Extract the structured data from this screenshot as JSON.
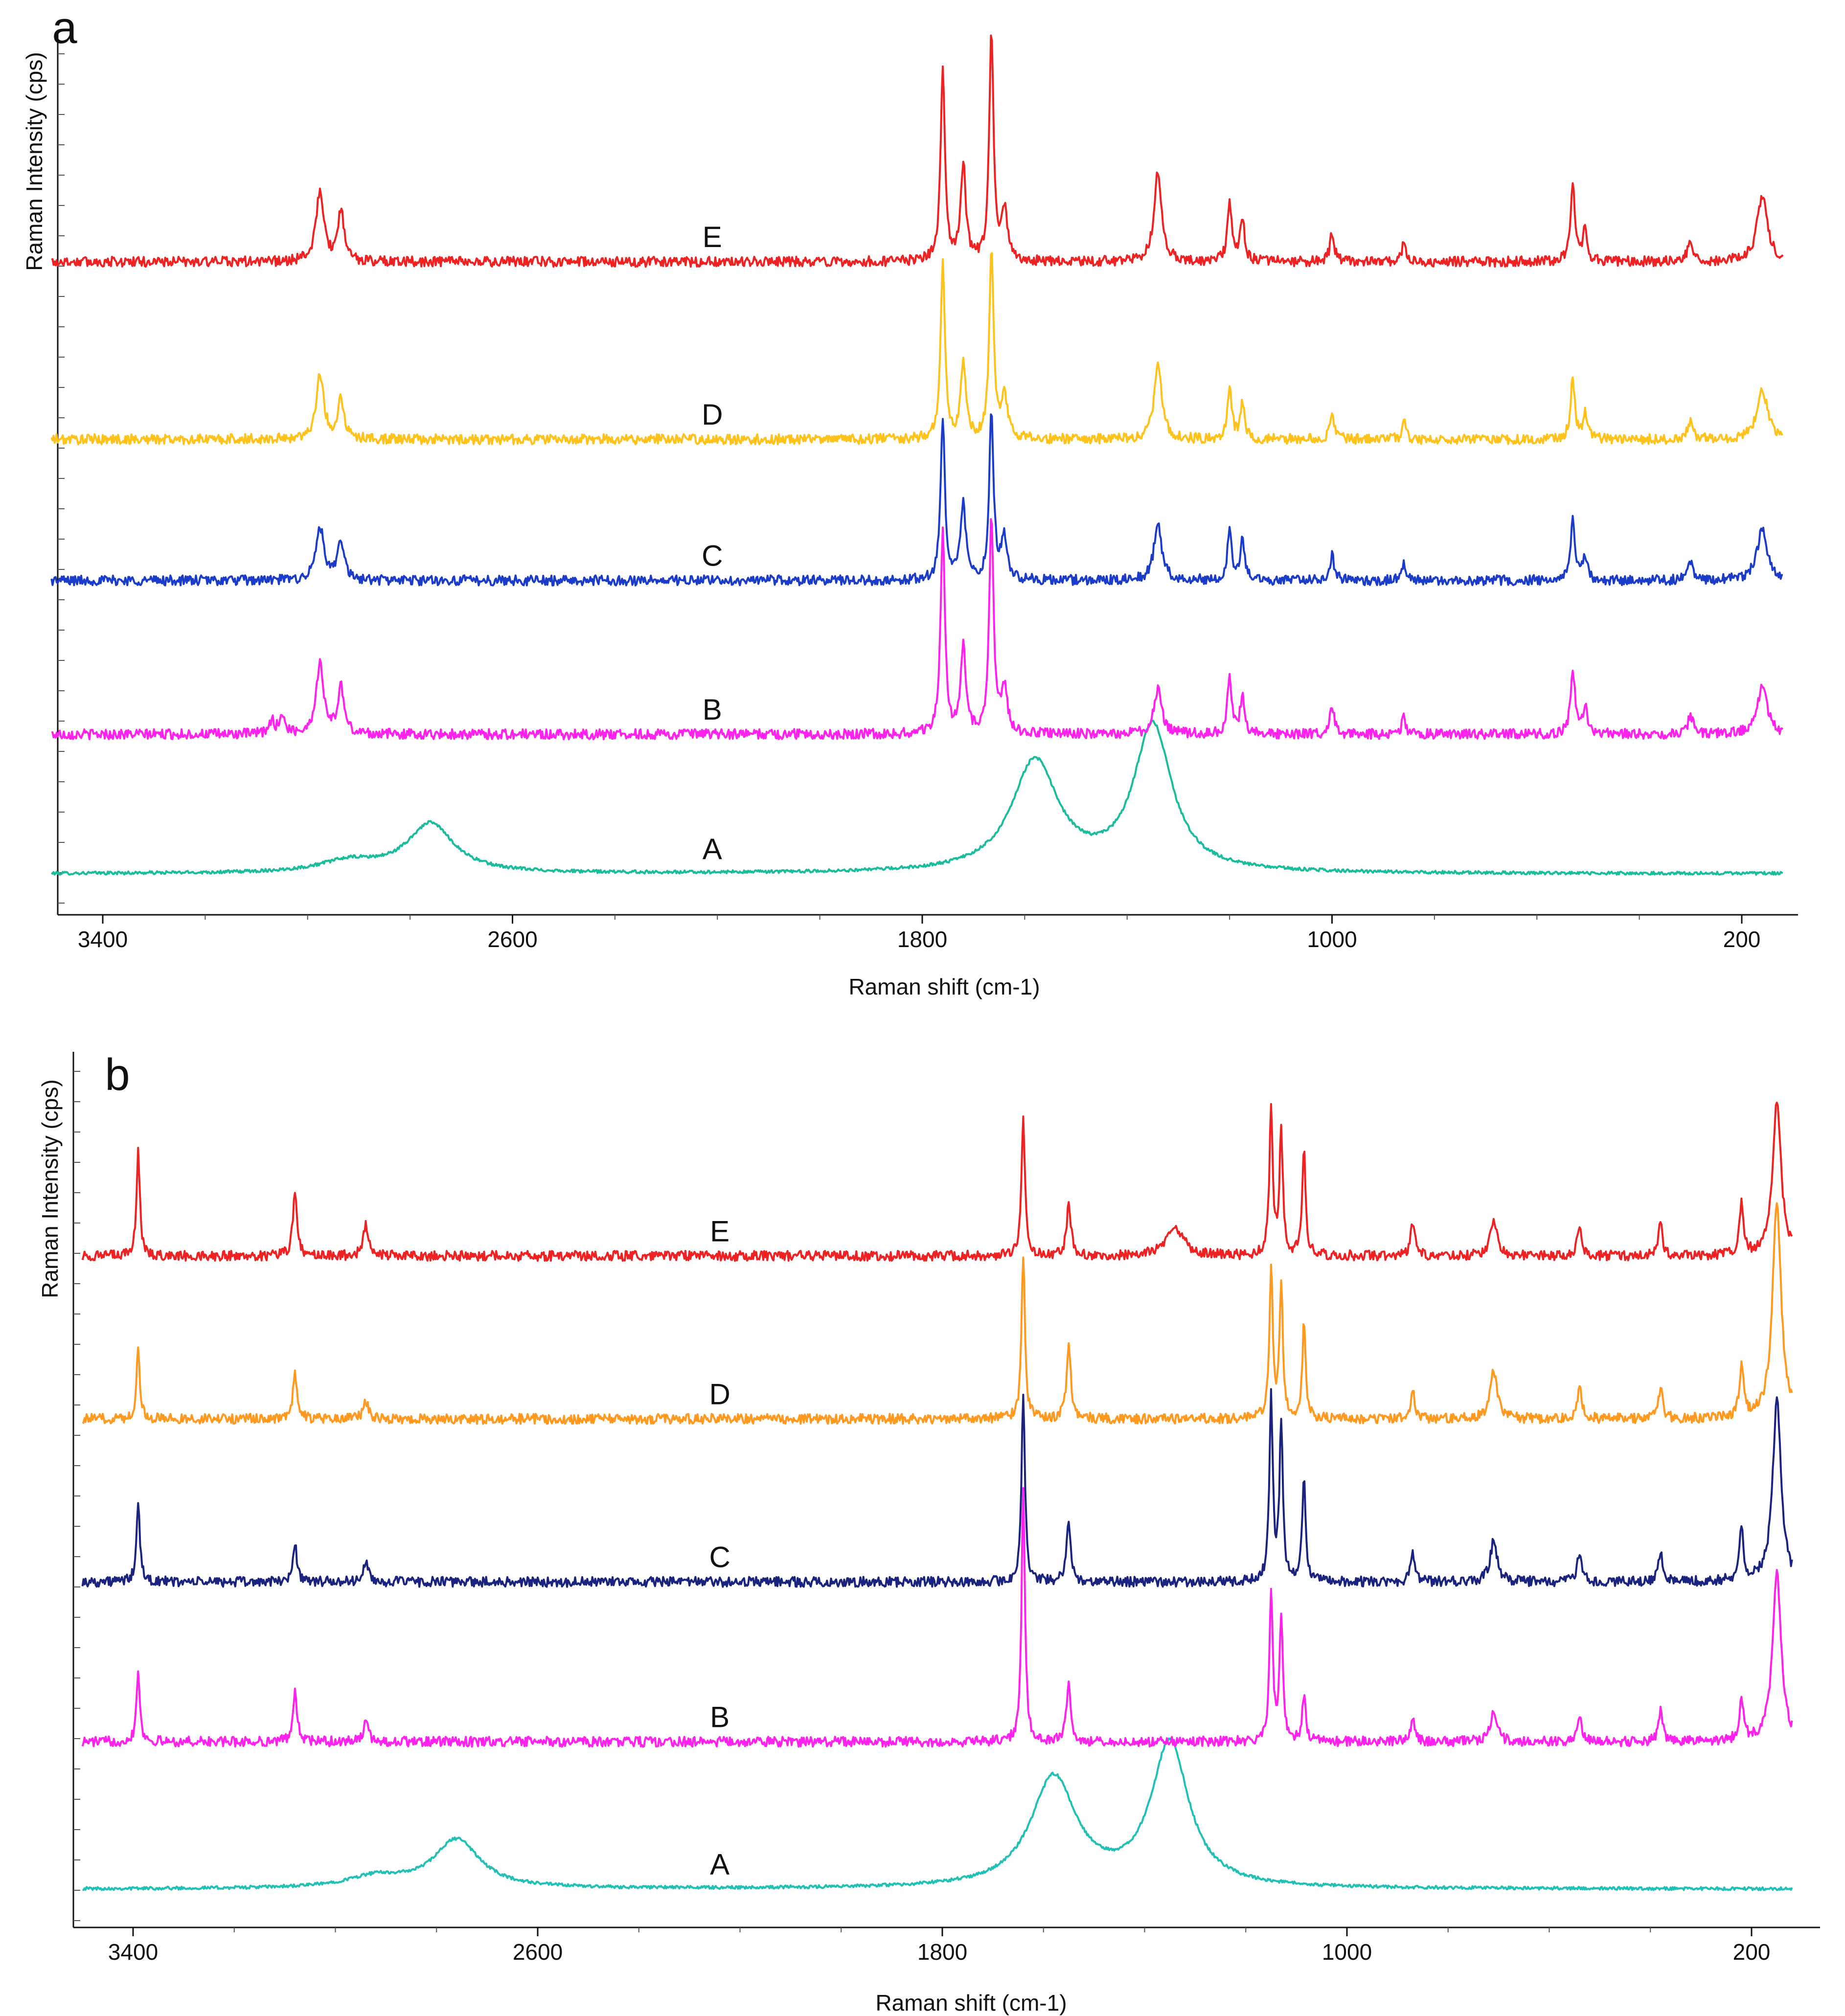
{
  "chart_data": [
    {
      "type": "line",
      "panel_label": "a",
      "xlabel": "Raman shift (cm-1)",
      "ylabel": "Raman Intensity (cps)",
      "xlim": [
        3500,
        120
      ],
      "x_ticks": [
        3400,
        2600,
        1800,
        1000,
        200
      ],
      "x_tick_labels": [
        "3400",
        "2600",
        "1800",
        "1000",
        "200"
      ],
      "ylim": [
        0,
        27
      ],
      "y_ticks_shown": false,
      "series": [
        {
          "name": "A",
          "label": "A",
          "color": "#1ABC9C",
          "baseline": 0.6,
          "peaks": [
            [
              2920,
              0.35,
              70
            ],
            [
              2760,
              1.55,
              55
            ],
            [
              1580,
              3.5,
              55
            ],
            [
              1350,
              4.6,
              45
            ]
          ],
          "label_x": 2210,
          "label_y": 0.6
        },
        {
          "name": "B",
          "label": "B",
          "color": "#FF22EE",
          "baseline": 5.0,
          "peaks": [
            [
              3070,
              0.4,
              6
            ],
            [
              3050,
              0.6,
              6
            ],
            [
              2976,
              2.2,
              9
            ],
            [
              2935,
              1.5,
              7
            ],
            [
              1760,
              6.5,
              5
            ],
            [
              1720,
              2.7,
              6
            ],
            [
              1665,
              6.8,
              5
            ],
            [
              1640,
              1.4,
              7
            ],
            [
              1340,
              1.4,
              9
            ],
            [
              1200,
              1.8,
              5
            ],
            [
              1175,
              1.2,
              5
            ],
            [
              1000,
              0.9,
              5
            ],
            [
              860,
              0.6,
              4
            ],
            [
              530,
              2.1,
              5
            ],
            [
              506,
              0.9,
              5
            ],
            [
              300,
              0.6,
              6
            ],
            [
              160,
              1.5,
              12
            ]
          ],
          "label_x": 2210,
          "label_y": 5.0
        },
        {
          "name": "C",
          "label": "C",
          "color": "#1A3CC8",
          "baseline": 9.85,
          "peaks": [
            [
              2976,
              1.7,
              9
            ],
            [
              2935,
              1.3,
              7
            ],
            [
              1760,
              5.0,
              5
            ],
            [
              1720,
              2.4,
              6
            ],
            [
              1665,
              5.3,
              5
            ],
            [
              1640,
              1.3,
              7
            ],
            [
              1340,
              1.8,
              9
            ],
            [
              1200,
              1.6,
              5
            ],
            [
              1175,
              1.2,
              5
            ],
            [
              1000,
              0.8,
              5
            ],
            [
              860,
              0.6,
              4
            ],
            [
              530,
              1.9,
              5
            ],
            [
              506,
              0.8,
              5
            ],
            [
              300,
              0.6,
              6
            ],
            [
              160,
              1.6,
              12
            ]
          ],
          "label_x": 2210,
          "label_y": 9.85
        },
        {
          "name": "D",
          "label": "D",
          "color": "#FFC21A",
          "baseline": 14.3,
          "peaks": [
            [
              2976,
              2.0,
              9
            ],
            [
              2935,
              1.3,
              7
            ],
            [
              1760,
              5.5,
              5
            ],
            [
              1720,
              2.4,
              6
            ],
            [
              1665,
              6.0,
              5
            ],
            [
              1640,
              1.4,
              7
            ],
            [
              1340,
              2.3,
              9
            ],
            [
              1200,
              1.6,
              5
            ],
            [
              1175,
              1.2,
              5
            ],
            [
              1000,
              0.8,
              5
            ],
            [
              860,
              0.6,
              4
            ],
            [
              530,
              1.9,
              5
            ],
            [
              506,
              0.8,
              5
            ],
            [
              300,
              0.6,
              6
            ],
            [
              160,
              1.6,
              12
            ]
          ],
          "label_x": 2210,
          "label_y": 14.3
        },
        {
          "name": "E",
          "label": "E",
          "color": "#EE2222",
          "baseline": 19.9,
          "peaks": [
            [
              2976,
              2.2,
              9
            ],
            [
              2935,
              1.6,
              7
            ],
            [
              1760,
              6.2,
              5
            ],
            [
              1720,
              3.0,
              6
            ],
            [
              1665,
              7.1,
              5
            ],
            [
              1640,
              1.6,
              7
            ],
            [
              1340,
              2.8,
              9
            ],
            [
              1200,
              1.9,
              5
            ],
            [
              1175,
              1.4,
              5
            ],
            [
              1000,
              0.9,
              5
            ],
            [
              860,
              0.6,
              4
            ],
            [
              530,
              2.5,
              5
            ],
            [
              506,
              1.0,
              5
            ],
            [
              300,
              0.7,
              6
            ],
            [
              160,
              2.1,
              12
            ]
          ],
          "label_x": 2210,
          "label_y": 19.9
        }
      ]
    },
    {
      "type": "line",
      "panel_label": "b",
      "xlabel": "Raman shift (cm-1)",
      "ylabel": "Raman Intensity (cps)",
      "xlim": [
        3500,
        120
      ],
      "x_ticks": [
        3400,
        2600,
        1800,
        1000,
        200
      ],
      "x_tick_labels": [
        "3400",
        "2600",
        "1800",
        "1000",
        "200"
      ],
      "ylim": [
        0,
        27
      ],
      "y_ticks_shown": false,
      "series": [
        {
          "name": "A",
          "label": "A",
          "color": "#20C0B4",
          "baseline": 0.6,
          "peaks": [
            [
              2920,
              0.35,
              70
            ],
            [
              2760,
              1.55,
              55
            ],
            [
              1580,
              3.5,
              55
            ],
            [
              1350,
              4.6,
              45
            ]
          ],
          "label_x": 2240,
          "label_y": 0.6
        },
        {
          "name": "B",
          "label": "B",
          "color": "#FF22EE",
          "baseline": 5.3,
          "peaks": [
            [
              3390,
              2.3,
              4
            ],
            [
              3080,
              1.6,
              5
            ],
            [
              2940,
              0.6,
              6
            ],
            [
              1640,
              8.0,
              4
            ],
            [
              1550,
              1.9,
              5
            ],
            [
              1150,
              4.7,
              4
            ],
            [
              1130,
              4.0,
              4
            ],
            [
              1085,
              1.5,
              4
            ],
            [
              870,
              0.8,
              5
            ],
            [
              710,
              0.9,
              8
            ],
            [
              540,
              0.8,
              5
            ],
            [
              380,
              1.0,
              5
            ],
            [
              220,
              1.3,
              5
            ],
            [
              150,
              5.5,
              10
            ]
          ],
          "label_x": 2240,
          "label_y": 5.3
        },
        {
          "name": "C",
          "label": "C",
          "color": "#1A237E",
          "baseline": 10.4,
          "peaks": [
            [
              3390,
              2.5,
              4
            ],
            [
              3080,
              1.2,
              5
            ],
            [
              2940,
              0.6,
              6
            ],
            [
              1640,
              6.0,
              4
            ],
            [
              1550,
              1.9,
              5
            ],
            [
              1150,
              5.8,
              4
            ],
            [
              1130,
              5.0,
              4
            ],
            [
              1085,
              3.3,
              4
            ],
            [
              870,
              0.9,
              5
            ],
            [
              710,
              1.3,
              8
            ],
            [
              540,
              1.0,
              5
            ],
            [
              380,
              1.0,
              5
            ],
            [
              220,
              1.6,
              5
            ],
            [
              150,
              5.8,
              10
            ]
          ],
          "label_x": 2240,
          "label_y": 10.4
        },
        {
          "name": "D",
          "label": "D",
          "color": "#FF9920",
          "baseline": 15.6,
          "peaks": [
            [
              3390,
              2.2,
              4
            ],
            [
              3080,
              1.4,
              5
            ],
            [
              2940,
              0.6,
              6
            ],
            [
              1640,
              5.3,
              4
            ],
            [
              1550,
              2.4,
              5
            ],
            [
              1150,
              4.8,
              4
            ],
            [
              1130,
              4.2,
              4
            ],
            [
              1085,
              3.0,
              4
            ],
            [
              870,
              0.9,
              5
            ],
            [
              710,
              1.5,
              8
            ],
            [
              540,
              1.0,
              5
            ],
            [
              380,
              1.0,
              5
            ],
            [
              220,
              1.6,
              5
            ],
            [
              150,
              7.0,
              10
            ]
          ],
          "label_x": 2240,
          "label_y": 15.6
        },
        {
          "name": "E",
          "label": "E",
          "color": "#EE2222",
          "baseline": 20.8,
          "peaks": [
            [
              3390,
              3.3,
              4
            ],
            [
              3080,
              2.0,
              5
            ],
            [
              2940,
              1.0,
              6
            ],
            [
              1640,
              4.4,
              4
            ],
            [
              1550,
              1.7,
              5
            ],
            [
              1340,
              0.9,
              20
            ],
            [
              1150,
              4.6,
              4
            ],
            [
              1130,
              3.9,
              4
            ],
            [
              1085,
              3.4,
              4
            ],
            [
              870,
              1.1,
              5
            ],
            [
              710,
              1.2,
              8
            ],
            [
              540,
              1.0,
              5
            ],
            [
              380,
              1.0,
              5
            ],
            [
              220,
              1.6,
              5
            ],
            [
              150,
              4.9,
              10
            ]
          ],
          "label_x": 2240,
          "label_y": 20.8
        }
      ]
    }
  ]
}
